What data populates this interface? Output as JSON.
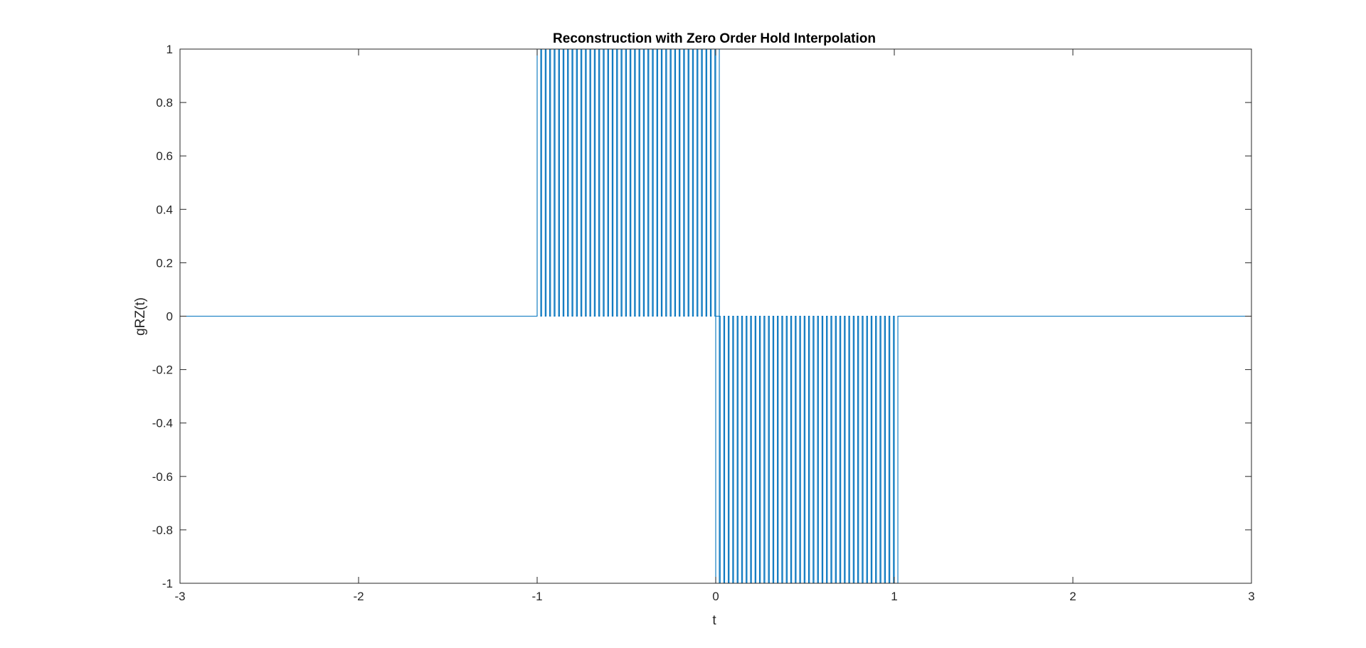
{
  "chart_data": {
    "type": "line",
    "title": "Reconstruction with Zero Order Hold Interpolation",
    "xlabel": "t",
    "ylabel": "gRZ(t)",
    "xlim": [
      -3,
      3
    ],
    "ylim": [
      -1,
      1
    ],
    "grid": false,
    "x_ticks": [
      -3,
      -2,
      -1,
      0,
      1,
      2,
      3
    ],
    "x_tick_labels": [
      "-3",
      "-2",
      "-1",
      "0",
      "1",
      "2",
      "3"
    ],
    "y_ticks": [
      -1,
      -0.8,
      -0.6,
      -0.4,
      -0.2,
      0,
      0.2,
      0.4,
      0.6,
      0.8,
      1
    ],
    "y_tick_labels": [
      "-1",
      "-0.8",
      "-0.6",
      "-0.4",
      "-0.2",
      "0",
      "0.2",
      "0.4",
      "0.6",
      "0.8",
      "1"
    ],
    "series": [
      {
        "color": "#0072BD",
        "baseline": 0,
        "pulse_groups": [
          {
            "t_start": -1.0,
            "t_end": 0.0,
            "period": 0.025,
            "pulse_width": 0.02,
            "amplitude": 1
          },
          {
            "t_start": 0.0,
            "t_end": 1.0,
            "period": 0.025,
            "pulse_width": 0.02,
            "amplitude": -1
          }
        ]
      }
    ]
  }
}
